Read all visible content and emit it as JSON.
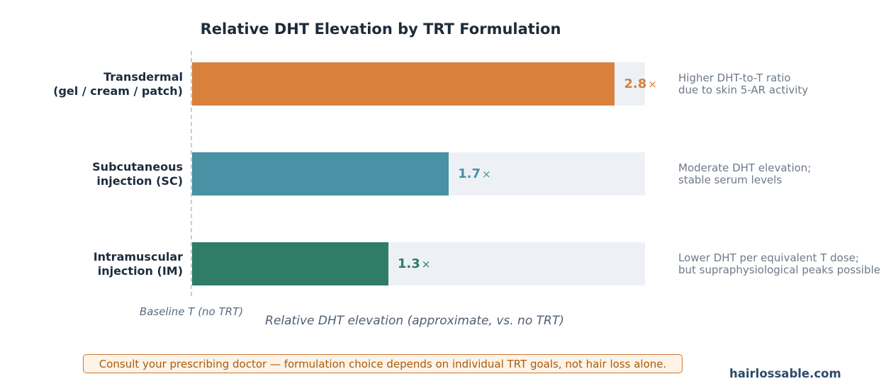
{
  "title": "Relative DHT Elevation by TRT Formulation",
  "chart_data": {
    "type": "bar",
    "orientation": "horizontal",
    "title": "Relative DHT Elevation by TRT Formulation",
    "xlabel": "Relative DHT elevation (approximate, vs. no TRT)",
    "xlim": [
      0,
      3.0
    ],
    "grid": false,
    "legend": "none",
    "baseline_label": "Baseline T (no TRT)",
    "categories": [
      "Transdermal (gel / cream / patch)",
      "Subcutaneous injection (SC)",
      "Intramuscular injection (IM)"
    ],
    "values": [
      2.8,
      1.7,
      1.3
    ],
    "bars": [
      {
        "category": "Transdermal (gel / cream / patch)",
        "category_lines": [
          "Transdermal",
          "(gel / cream / patch)"
        ],
        "value": 2.8,
        "value_label": "2.8",
        "times_symbol": "×",
        "color": "#d9803d",
        "annotation_lines": [
          "Higher DHT-to-T ratio",
          "due to skin 5-AR activity"
        ]
      },
      {
        "category": "Subcutaneous injection (SC)",
        "category_lines": [
          "Subcutaneous",
          "injection (SC)"
        ],
        "value": 1.7,
        "value_label": "1.7",
        "times_symbol": "×",
        "color": "#4991a4",
        "annotation_lines": [
          "Moderate DHT elevation;",
          "stable serum levels"
        ]
      },
      {
        "category": "Intramuscular injection (IM)",
        "category_lines": [
          "Intramuscular",
          "injection (IM)"
        ],
        "value": 1.3,
        "value_label": "1.3",
        "times_symbol": "×",
        "color": "#2e7d64",
        "annotation_lines": [
          "Lower DHT per equivalent T dose;",
          "but supraphysiological peaks possible"
        ]
      }
    ]
  },
  "footer": {
    "note": "Consult your prescribing doctor — formulation choice depends on individual TRT goals, not hair loss alone.",
    "website": "hairlossable.com"
  },
  "colors": {
    "bar_transdermal": "#d9803d",
    "bar_subcutaneous": "#4991a4",
    "bar_intramuscular": "#2e7d64",
    "bar_track": "#edf1f6",
    "title_text": "#1e2b3a",
    "annotation_text": "#6e7988",
    "baseline_dash": "#c7cdd8",
    "note_border": "#cd7634",
    "note_text": "#a55c14",
    "note_background": "#fdf3e6",
    "website_text": "#2e4a6b"
  }
}
